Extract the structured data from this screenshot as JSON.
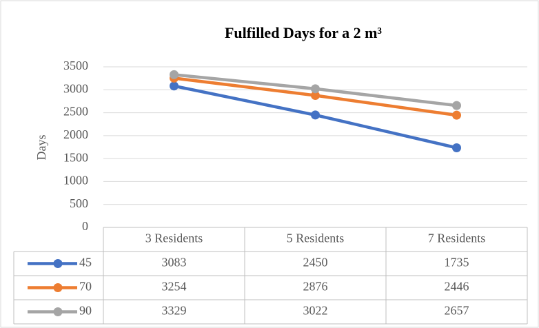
{
  "chart_data": {
    "type": "line",
    "title": "Fulfilled Days for a 2 m³",
    "ylabel": "Days",
    "categories": [
      "3 Residents",
      "5 Residents",
      "7 Residents"
    ],
    "series": [
      {
        "name": "45",
        "color": "#4472c4",
        "values": [
          3083,
          2450,
          1735
        ]
      },
      {
        "name": "70",
        "color": "#ed7d31",
        "values": [
          3254,
          2876,
          2446
        ]
      },
      {
        "name": "90",
        "color": "#a5a5a5",
        "values": [
          3329,
          3022,
          2657
        ]
      }
    ],
    "ylim": [
      0,
      3500
    ],
    "yticks": [
      0,
      500,
      1000,
      1500,
      2000,
      2500,
      3000,
      3500
    ],
    "grid": true
  }
}
